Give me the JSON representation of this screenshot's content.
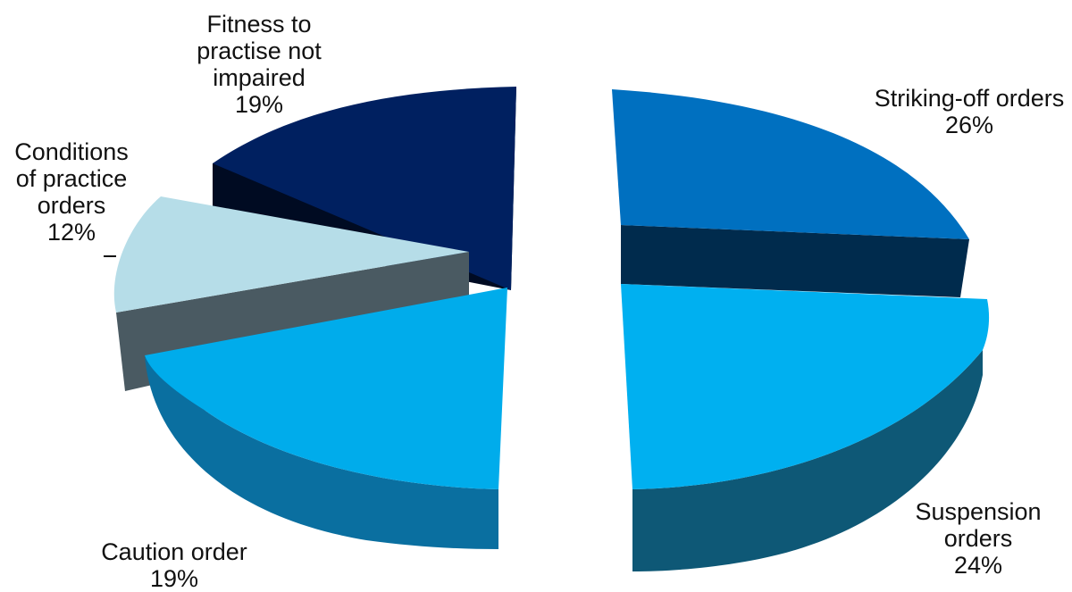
{
  "chart_data": {
    "type": "pie",
    "style": "3d-exploded",
    "title": "",
    "slices": [
      {
        "label_lines": [
          "Striking-off orders"
        ],
        "value_label": "26%",
        "value": 26,
        "color": "#0070C0",
        "side_color": "#002B4D"
      },
      {
        "label_lines": [
          "Suspension",
          "orders"
        ],
        "value_label": "24%",
        "value": 24,
        "color": "#00B0F0",
        "side_color": "#0E5876"
      },
      {
        "label_lines": [
          "Caution order"
        ],
        "value_label": "19%",
        "value": 19,
        "color": "#00ACEB",
        "side_color": "#0A6FA0"
      },
      {
        "label_lines": [
          "Conditions",
          "of practice",
          "orders"
        ],
        "value_label": "12%",
        "value": 12,
        "color": "#B6DDE8",
        "side_color": "#4A5A62"
      },
      {
        "label_lines": [
          "Fitness to",
          "practise not",
          "impaired"
        ],
        "value_label": "19%",
        "value": 19,
        "color": "#002060",
        "side_color": "#000B22"
      }
    ]
  }
}
